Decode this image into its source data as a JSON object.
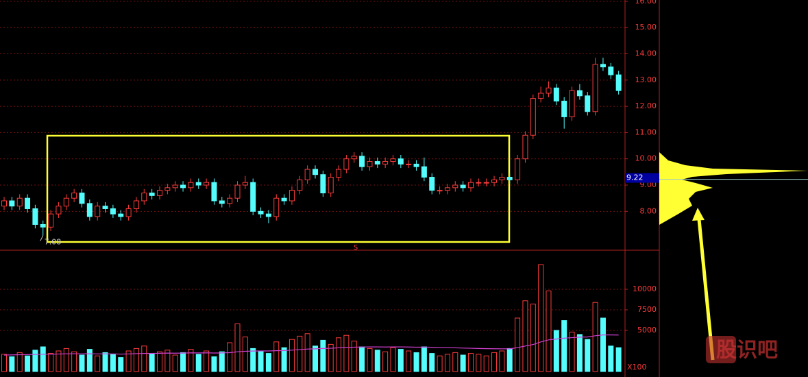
{
  "chart_data": {
    "type": "candlestick",
    "ylim": [
      6.52,
      16.05
    ],
    "yticks": [
      {
        "value": 8,
        "label": "8.00"
      },
      {
        "value": 9,
        "label": "9.00"
      },
      {
        "value": 10,
        "label": "10.00"
      },
      {
        "value": 11,
        "label": "11.00"
      },
      {
        "value": 12,
        "label": "12.00"
      },
      {
        "value": 13,
        "label": "13.00"
      },
      {
        "value": 14,
        "label": "14.00"
      },
      {
        "value": 15,
        "label": "15.00"
      },
      {
        "value": 16,
        "label": "16.00"
      }
    ],
    "y2lim": [
      0,
      14750
    ],
    "y2ticks": [
      5000,
      7500,
      10000
    ],
    "up_color": "#ff3c3c",
    "down_color": "#54fcfc",
    "ma_color": "#d040d0",
    "grid": true,
    "candles": {
      "open": [
        8.2,
        8.4,
        8.2,
        8.5,
        8.1,
        7.5,
        7.4,
        7.9,
        8.2,
        8.5,
        8.7,
        8.3,
        7.8,
        8.2,
        8.1,
        7.9,
        7.8,
        8.1,
        8.4,
        8.7,
        8.6,
        8.8,
        8.9,
        9.0,
        8.9,
        9.1,
        9.0,
        9.1,
        8.4,
        8.3,
        8.5,
        9.0,
        9.1,
        8.0,
        7.9,
        7.8,
        8.5,
        8.4,
        8.8,
        9.2,
        9.6,
        9.4,
        8.7,
        9.3,
        9.6,
        10.0,
        10.1,
        9.7,
        9.9,
        9.8,
        9.9,
        10.0,
        9.8,
        9.8,
        9.7,
        9.3,
        8.8,
        8.8,
        8.9,
        9.0,
        8.9,
        9.1,
        9.1,
        9.1,
        9.2,
        9.3,
        9.2,
        10.0,
        10.9,
        12.3,
        12.5,
        12.7,
        12.2,
        11.6,
        12.6,
        12.4,
        11.8,
        13.6,
        13.5,
        13.2
      ],
      "high": [
        8.55,
        8.55,
        8.65,
        8.65,
        8.25,
        7.65,
        8.05,
        8.35,
        8.65,
        8.85,
        8.85,
        8.45,
        8.35,
        8.35,
        8.25,
        8.05,
        8.25,
        8.55,
        8.85,
        8.85,
        8.95,
        9.05,
        9.15,
        9.15,
        9.25,
        9.25,
        9.25,
        9.25,
        8.55,
        8.65,
        9.15,
        9.35,
        9.25,
        8.15,
        8.05,
        8.65,
        8.65,
        8.95,
        9.35,
        9.75,
        9.75,
        9.55,
        9.45,
        9.75,
        10.15,
        10.25,
        10.25,
        10.05,
        10.05,
        10.05,
        10.15,
        10.15,
        9.95,
        9.95,
        10.05,
        9.45,
        8.95,
        9.05,
        9.15,
        9.15,
        9.25,
        9.25,
        9.25,
        9.35,
        9.45,
        9.45,
        10.15,
        11.05,
        12.45,
        12.75,
        12.95,
        12.85,
        12.35,
        12.75,
        12.85,
        12.55,
        13.85,
        13.85,
        13.65,
        13.35
      ],
      "low": [
        8.05,
        8.05,
        8.05,
        7.95,
        7.35,
        7.08,
        7.25,
        7.75,
        8.05,
        8.35,
        8.15,
        7.65,
        7.65,
        7.95,
        7.75,
        7.65,
        7.65,
        7.95,
        8.25,
        8.45,
        8.45,
        8.65,
        8.75,
        8.75,
        8.75,
        8.85,
        8.85,
        8.25,
        8.15,
        8.15,
        8.35,
        8.85,
        7.85,
        7.75,
        7.55,
        7.65,
        8.25,
        8.25,
        8.65,
        9.05,
        9.25,
        8.55,
        8.55,
        9.15,
        9.45,
        9.85,
        9.55,
        9.55,
        9.65,
        9.65,
        9.75,
        9.65,
        9.65,
        9.55,
        9.15,
        8.65,
        8.65,
        8.65,
        8.75,
        8.75,
        8.75,
        8.95,
        8.95,
        8.95,
        9.05,
        9.05,
        9.05,
        9.85,
        10.75,
        12.15,
        12.35,
        12.05,
        11.15,
        11.45,
        12.25,
        11.65,
        11.65,
        13.35,
        13.05,
        12.45
      ],
      "close": [
        8.4,
        8.2,
        8.5,
        8.1,
        7.5,
        7.4,
        7.9,
        8.2,
        8.5,
        8.7,
        8.3,
        7.8,
        8.2,
        8.1,
        7.9,
        7.8,
        8.1,
        8.4,
        8.7,
        8.6,
        8.8,
        8.9,
        9.0,
        8.9,
        9.1,
        9.0,
        9.1,
        8.4,
        8.3,
        8.5,
        9.0,
        9.1,
        8.0,
        7.9,
        7.8,
        8.5,
        8.4,
        8.8,
        9.2,
        9.6,
        9.4,
        8.7,
        9.3,
        9.6,
        10.0,
        10.1,
        9.7,
        9.9,
        9.8,
        9.9,
        10.0,
        9.8,
        9.8,
        9.7,
        9.3,
        8.8,
        8.8,
        8.9,
        9.0,
        8.9,
        9.1,
        9.1,
        9.1,
        9.2,
        9.3,
        9.2,
        10.0,
        10.9,
        12.3,
        12.5,
        12.7,
        12.2,
        11.6,
        12.6,
        12.4,
        11.8,
        13.6,
        13.5,
        13.2,
        12.6
      ]
    },
    "volume": [
      2100,
      1800,
      2300,
      1900,
      2600,
      3000,
      2200,
      2500,
      2800,
      2400,
      2000,
      2700,
      1900,
      2300,
      2100,
      1700,
      2500,
      2800,
      3100,
      2200,
      2400,
      2600,
      2000,
      2300,
      2700,
      2100,
      2500,
      1800,
      2400,
      3500,
      5800,
      4200,
      2800,
      2500,
      2200,
      3600,
      2900,
      3900,
      4300,
      4600,
      3100,
      3800,
      3300,
      4100,
      4400,
      3700,
      3000,
      2800,
      2600,
      2400,
      2900,
      2700,
      2500,
      2300,
      3000,
      2200,
      1900,
      2100,
      2300,
      2000,
      2200,
      2100,
      1900,
      2300,
      2500,
      2800,
      6500,
      8600,
      8200,
      13000,
      9800,
      5000,
      6200,
      4800,
      4500,
      3900,
      8400,
      6500,
      3100,
      2900
    ],
    "volume_ma": [
      2000,
      2020,
      2040,
      2050,
      2080,
      2100,
      2110,
      2130,
      2150,
      2160,
      2150,
      2160,
      2140,
      2150,
      2140,
      2120,
      2140,
      2170,
      2200,
      2200,
      2220,
      2240,
      2230,
      2240,
      2270,
      2260,
      2270,
      2250,
      2260,
      2290,
      2400,
      2460,
      2490,
      2500,
      2500,
      2530,
      2550,
      2600,
      2660,
      2730,
      2760,
      2800,
      2830,
      2880,
      2930,
      2960,
      2980,
      2990,
      2990,
      2980,
      2990,
      2990,
      2980,
      2960,
      2970,
      2950,
      2920,
      2900,
      2880,
      2850,
      2830,
      2800,
      2780,
      2770,
      2760,
      2760,
      2900,
      3100,
      3280,
      3600,
      3850,
      3950,
      4050,
      4120,
      4180,
      4200,
      4350,
      4450,
      4450,
      4440
    ],
    "low_marker": 7.08,
    "current_price": 9.22,
    "signal": "S",
    "volume_unit": "X100",
    "watermark": "股识吧"
  }
}
